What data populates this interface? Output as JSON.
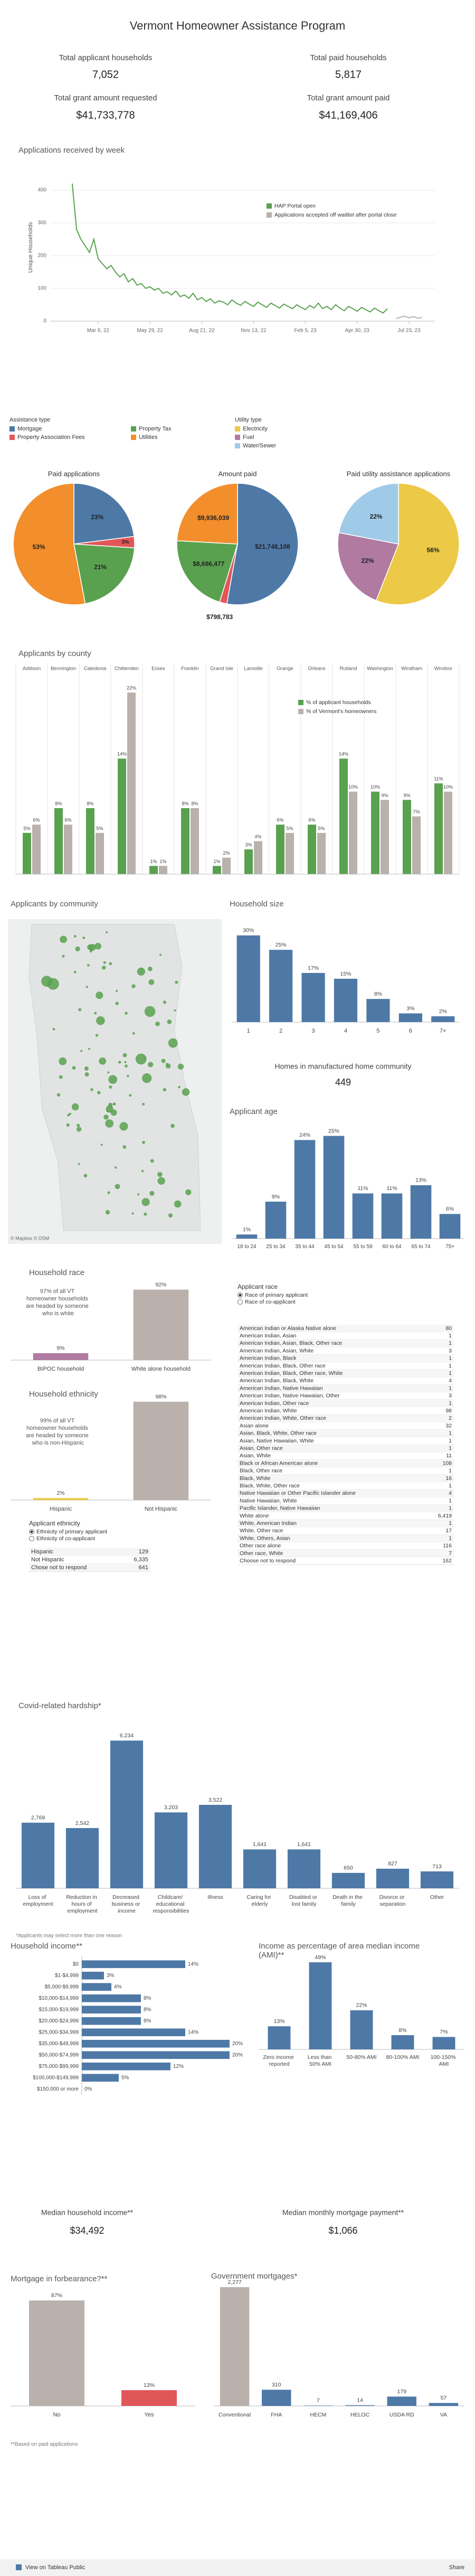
{
  "header": {
    "title": "Vermont Homeowner Assistance Program"
  },
  "kpis": [
    {
      "label": "Total applicant households",
      "value": "7,052"
    },
    {
      "label": "Total paid households",
      "value": "5,817"
    },
    {
      "label": "Total grant amount requested",
      "value": "$41,733,778"
    },
    {
      "label": "Total grant amount paid",
      "value": "$41,169,406"
    }
  ],
  "assistance_legend": {
    "title": "Assistance type",
    "items": [
      {
        "name": "Mortgage",
        "color": "#4e79a7"
      },
      {
        "name": "Property Tax",
        "color": "#59a14f"
      },
      {
        "name": "Property Association Fees",
        "color": "#e15759"
      },
      {
        "name": "Utilities",
        "color": "#f28e2b"
      }
    ]
  },
  "utility_legend": {
    "title": "Utility type",
    "items": [
      {
        "name": "Electricity",
        "color": "#edc948"
      },
      {
        "name": "Fuel",
        "color": "#b07aa1"
      },
      {
        "name": "Water/Sewer",
        "color": "#a0cbe8"
      }
    ]
  },
  "community_map": {
    "title": "Applicants by community",
    "attribution": "© Mapbox © OSM"
  },
  "manufactured": {
    "label": "Homes in manufactured home community",
    "value": "449"
  },
  "ethnicity_table": {
    "title": "Applicant ethnicity",
    "options": [
      "Ethnicity of primary applicant",
      "Ethnicity of co-applicant"
    ],
    "rows": [
      [
        "Hispanic",
        "129"
      ],
      [
        "Not Hispanic",
        "6,335"
      ],
      [
        "Chose not to respond",
        "641"
      ]
    ]
  },
  "race_table": {
    "title": "Applicant race",
    "options": [
      "Race of primary applicant",
      "Race of co-applicant"
    ],
    "rows": [
      [
        "American Indian or Alaska Native alone",
        "80"
      ],
      [
        "American Indian, Asian",
        "1"
      ],
      [
        "American Indian, Asian, Black, Other race",
        "1"
      ],
      [
        "American Indian, Asian, White",
        "3"
      ],
      [
        "American Indian, Black",
        "1"
      ],
      [
        "American Indian, Black, Other race",
        "1"
      ],
      [
        "American Indian, Black, Other race, White",
        "1"
      ],
      [
        "American Indian, Black, White",
        "4"
      ],
      [
        "American Indian, Native Hawaiian",
        "1"
      ],
      [
        "American Indian, Native Hawaiian, Other",
        "3"
      ],
      [
        "American Indian, Other race",
        "1"
      ],
      [
        "American Indian, White",
        "98"
      ],
      [
        "American Indian, White, Other race",
        "2"
      ],
      [
        "Asian alone",
        "32"
      ],
      [
        "Asian, Black, White, Other race",
        "1"
      ],
      [
        "Asian, Native Hawaiian, White",
        "1"
      ],
      [
        "Asian, Other race",
        "1"
      ],
      [
        "Asian, White",
        "11"
      ],
      [
        "Black or African American alone",
        "108"
      ],
      [
        "Black, Other race",
        "1"
      ],
      [
        "Black, White",
        "16"
      ],
      [
        "Black, White, Other race",
        "1"
      ],
      [
        "Native Hawaiian or Other Pacific Islander alone",
        "4"
      ],
      [
        "Native Hawaiian, White",
        "1"
      ],
      [
        "Pacific Islander, Native Hawaiian",
        "1"
      ],
      [
        "White alone",
        "6,419"
      ],
      [
        "White, American Indian",
        "1"
      ],
      [
        "White, Other race",
        "17"
      ],
      [
        "White, Others, Asian",
        "1"
      ],
      [
        "Other race alone",
        "116"
      ],
      [
        "Other race, White",
        "7"
      ],
      [
        "Choose not to respond",
        "162"
      ]
    ]
  },
  "medians": [
    {
      "label": "Median household income**",
      "value": "$34,492"
    },
    {
      "label": "Median monthly mortgage payment**",
      "value": "$1,066"
    }
  ],
  "footnotes": {
    "covid": "*Applicants may select more than one reason",
    "paid": "**Based on paid applications"
  },
  "footer": {
    "view": "View on Tableau Public",
    "share": "Share"
  },
  "chart_data": [
    {
      "type": "line",
      "title": "Applications received by week",
      "ylabel": "Unique Households",
      "x": [
        "2022-01-23",
        "2022-01-30",
        "2022-02-06",
        "2022-02-13",
        "2022-02-20",
        "2022-02-27",
        "2022-03-06",
        "2022-03-13",
        "2022-03-20",
        "2022-03-27",
        "2022-04-03",
        "2022-04-10",
        "2022-04-17",
        "2022-04-24",
        "2022-05-01",
        "2022-05-08",
        "2022-05-15",
        "2022-05-22",
        "2022-05-29",
        "2022-06-05",
        "2022-06-12",
        "2022-06-19",
        "2022-06-26",
        "2022-07-03",
        "2022-07-10",
        "2022-07-17",
        "2022-07-24",
        "2022-07-31",
        "2022-08-07",
        "2022-08-14",
        "2022-08-21",
        "2022-08-28",
        "2022-09-04",
        "2022-09-11",
        "2022-09-18",
        "2022-09-25",
        "2022-10-02",
        "2022-10-09",
        "2022-10-16",
        "2022-10-23",
        "2022-10-30",
        "2022-11-06",
        "2022-11-13",
        "2022-11-20",
        "2022-11-27",
        "2022-12-04",
        "2022-12-11",
        "2022-12-18",
        "2022-12-25",
        "2023-01-01",
        "2023-01-08",
        "2023-01-15",
        "2023-01-22",
        "2023-01-29",
        "2023-02-05",
        "2023-02-12",
        "2023-02-19",
        "2023-02-26",
        "2023-03-05",
        "2023-03-12",
        "2023-03-19",
        "2023-03-26",
        "2023-04-02",
        "2023-04-09",
        "2023-04-16",
        "2023-04-23",
        "2023-04-30",
        "2023-05-07",
        "2023-05-14",
        "2023-05-21",
        "2023-05-28",
        "2023-06-04",
        "2023-06-11",
        "2023-06-18",
        "2023-07-02",
        "2023-07-09",
        "2023-07-16",
        "2023-07-23",
        "2023-07-30",
        "2023-08-06",
        "2023-08-13"
      ],
      "series": [
        {
          "name": "HAP Portal open",
          "color": "#59a14f",
          "values": [
            420,
            280,
            250,
            230,
            210,
            250,
            190,
            175,
            160,
            170,
            150,
            135,
            145,
            120,
            130,
            110,
            115,
            100,
            105,
            95,
            100,
            85,
            90,
            80,
            92,
            75,
            80,
            70,
            85,
            65,
            72,
            60,
            68,
            55,
            62,
            58,
            50,
            65,
            55,
            48,
            60,
            52,
            45,
            58,
            50,
            42,
            55,
            48,
            40,
            52,
            45,
            38,
            50,
            42,
            35,
            48,
            40,
            55,
            38,
            45,
            35,
            50,
            40,
            32,
            45,
            38,
            30,
            42,
            35,
            28,
            40,
            32,
            25,
            38,
            null,
            null,
            null,
            null,
            null,
            null,
            null
          ]
        },
        {
          "name": "Applications accepted off waitlist after portal close",
          "color": "#bab0ac",
          "values": [
            null,
            null,
            null,
            null,
            null,
            null,
            null,
            null,
            null,
            null,
            null,
            null,
            null,
            null,
            null,
            null,
            null,
            null,
            null,
            null,
            null,
            null,
            null,
            null,
            null,
            null,
            null,
            null,
            null,
            null,
            null,
            null,
            null,
            null,
            null,
            null,
            null,
            null,
            null,
            null,
            null,
            null,
            null,
            null,
            null,
            null,
            null,
            null,
            null,
            null,
            null,
            null,
            null,
            null,
            null,
            null,
            null,
            null,
            null,
            null,
            null,
            null,
            null,
            null,
            null,
            null,
            null,
            null,
            null,
            null,
            null,
            null,
            null,
            null,
            8,
            12,
            15,
            10,
            14,
            9,
            11
          ]
        }
      ],
      "xlim": [
        "2021-12-19",
        "2023-09-03"
      ],
      "xticks": [
        {
          "value": "2022-03-06",
          "label": "Mar 6, 22"
        },
        {
          "value": "2022-05-29",
          "label": "May 29, 22"
        },
        {
          "value": "2022-08-21",
          "label": "Aug 21, 22"
        },
        {
          "value": "2022-11-13",
          "label": "Nov 13, 22"
        },
        {
          "value": "2023-02-05",
          "label": "Feb 5, 23"
        },
        {
          "value": "2023-04-30",
          "label": "Apr 30, 23"
        },
        {
          "value": "2023-07-23",
          "label": "Jul 23, 23"
        }
      ],
      "ylim": [
        0,
        450
      ],
      "yticks": [
        0,
        100,
        200,
        300,
        400
      ],
      "grid": true,
      "legend": "upper-right"
    },
    {
      "type": "pie",
      "title": "Paid applications",
      "values": [
        23,
        3,
        21,
        53
      ],
      "value_labels": [
        "23%",
        "3%",
        "21%",
        "53%"
      ],
      "colors": [
        "#4e79a7",
        "#e15759",
        "#59a14f",
        "#f28e2b"
      ]
    },
    {
      "type": "pie",
      "title": "Amount paid",
      "values": [
        21748108,
        798783,
        8686477,
        9936039
      ],
      "value_labels": [
        "$21,748,108",
        "$798,783",
        "$8,686,477",
        "$9,936,039"
      ],
      "colors": [
        "#4e79a7",
        "#e15759",
        "#59a14f",
        "#f28e2b"
      ]
    },
    {
      "type": "pie",
      "title": "Paid utility assistance applications",
      "values": [
        56,
        22,
        22
      ],
      "value_labels": [
        "56%",
        "22%",
        "22%"
      ],
      "colors": [
        "#edc948",
        "#b07aa1",
        "#a0cbe8"
      ]
    },
    {
      "type": "grouped_bar",
      "title": "Applicants by county",
      "categories": [
        "Addison",
        "Bennington",
        "Caledonia",
        "Chittenden",
        "Essex",
        "Franklin",
        "Grand Isle",
        "Lamoille",
        "Orange",
        "Orleans",
        "Rutland",
        "Washington",
        "Windham",
        "Windsor"
      ],
      "series": [
        {
          "name": "% of applicant households",
          "color": "#59a14f",
          "values": [
            5,
            8,
            8,
            14,
            1,
            8,
            1,
            3,
            6,
            6,
            14,
            10,
            9,
            11
          ],
          "value_labels": [
            "5%",
            "8%",
            "8%",
            "14%",
            "1%",
            "8%",
            "1%",
            "3%",
            "6%",
            "6%",
            "14%",
            "10%",
            "9%",
            "11%"
          ]
        },
        {
          "name": "% of Vermont's homeowners",
          "color": "#bab0ac",
          "values": [
            6,
            6,
            5,
            22,
            1,
            8,
            2,
            4,
            5,
            5,
            10,
            9,
            7,
            10
          ],
          "value_labels": [
            "6%",
            "6%",
            "5%",
            "22%",
            "1%",
            "8%",
            "2%",
            "4%",
            "5%",
            "5%",
            "10%",
            "9%",
            "7%",
            "10%"
          ]
        }
      ],
      "ylim": [
        0,
        24
      ],
      "legend": "upper-right"
    },
    {
      "type": "bar",
      "title": "Household size",
      "categories": [
        "1",
        "2",
        "3",
        "4",
        "5",
        "6",
        "7+"
      ],
      "values": [
        30,
        25,
        17,
        15,
        8,
        3,
        2
      ],
      "value_labels": [
        "30%",
        "25%",
        "17%",
        "15%",
        "8%",
        "3%",
        "2%"
      ],
      "color": "#4e79a7",
      "ylim": [
        0,
        32
      ]
    },
    {
      "type": "bar",
      "title": "Applicant age",
      "categories": [
        "18 to 24",
        "25 to 34",
        "35 to 44",
        "45 to 54",
        "55 to 59",
        "60 to 64",
        "65 to 74",
        "75+"
      ],
      "values": [
        1,
        9,
        24,
        25,
        11,
        11,
        13,
        6
      ],
      "value_labels": [
        "1%",
        "9%",
        "24%",
        "25%",
        "11%",
        "11%",
        "13%",
        "6%"
      ],
      "color": "#4e79a7",
      "ylim": [
        0,
        27
      ]
    },
    {
      "type": "bar",
      "title": "Household race",
      "note": "97% of all VT homeowner households are headed by someone who is white",
      "categories": [
        "BIPOC household",
        "White alone household"
      ],
      "values": [
        9,
        92
      ],
      "value_labels": [
        "9%",
        "92%"
      ],
      "colors": [
        "#b07aa1",
        "#bab0ac"
      ],
      "ylim": [
        0,
        100
      ]
    },
    {
      "type": "bar",
      "title": "Household ethnicity",
      "note": "99% of all VT homeowner households are headed by someone who is non-Hispanic",
      "categories": [
        "Hispanic",
        "Not Hispanic"
      ],
      "values": [
        2,
        98
      ],
      "value_labels": [
        "2%",
        "98%"
      ],
      "colors": [
        "#edc948",
        "#bab0ac"
      ],
      "ylim": [
        0,
        100
      ]
    },
    {
      "type": "bar",
      "title": "Covid-related hardship*",
      "categories": [
        "Loss of employment",
        "Reduction in hours of employment",
        "Decreased business or income",
        "Childcare/ educational responsibilities",
        "Illness",
        "Caring for elderly",
        "Disabled or lost family",
        "Death in the family",
        "Divorce or separation",
        "Other"
      ],
      "values": [
        2769,
        2542,
        6234,
        3203,
        3522,
        1641,
        1641,
        650,
        827,
        713
      ],
      "value_labels": [
        "2,769",
        "2,542",
        "6,234",
        "3,203",
        "3,522",
        "1,641",
        "1,641",
        "650",
        "827",
        "713"
      ],
      "color": "#4e79a7",
      "ylim": [
        0,
        7000
      ]
    },
    {
      "type": "hbar",
      "title": "Household income**",
      "categories": [
        "$0",
        "$1-$4,999",
        "$5,000-$9,999",
        "$10,000-$14,999",
        "$15,000-$19,999",
        "$20,000-$24,999",
        "$25,000-$34,999",
        "$35,000-$49,999",
        "$50,000-$74,999",
        "$75,000-$99,999",
        "$100,000-$149,999",
        "$150,000 or more"
      ],
      "values": [
        14,
        3,
        4,
        8,
        8,
        8,
        14,
        20,
        20,
        12,
        5,
        0
      ],
      "value_labels": [
        "14%",
        "3%",
        "4%",
        "8%",
        "8%",
        "8%",
        "14%",
        "20%",
        "20%",
        "12%",
        "5%",
        "0%"
      ],
      "color": "#4e79a7",
      "xlim": [
        0,
        22
      ]
    },
    {
      "type": "bar",
      "title": "Income as percentage of area median income (AMI)**",
      "categories": [
        "Zero income reported",
        "Less than 50% AMI",
        "50-80% AMI",
        "80-100% AMI",
        "100-150% AMI"
      ],
      "values": [
        13,
        49,
        22,
        8,
        7
      ],
      "value_labels": [
        "13%",
        "49%",
        "22%",
        "8%",
        "7%"
      ],
      "color": "#4e79a7",
      "ylim": [
        0,
        52
      ]
    },
    {
      "type": "bar",
      "title": "Mortgage in forbearance?**",
      "categories": [
        "No",
        "Yes"
      ],
      "values": [
        87,
        13
      ],
      "value_labels": [
        "87%",
        "13%"
      ],
      "colors": [
        "#bab0ac",
        "#e15759"
      ],
      "ylim": [
        0,
        95
      ]
    },
    {
      "type": "bar",
      "title": "Government mortgages*",
      "categories": [
        "Conventional",
        "FHA",
        "HECM",
        "HELOC",
        "USDA RD",
        "VA"
      ],
      "values": [
        2277,
        310,
        7,
        14,
        179,
        57
      ],
      "value_labels": [
        "2,277",
        "310",
        "7",
        "14",
        "179",
        "57"
      ],
      "colors": [
        "#bab0ac",
        "#4e79a7",
        "#4e79a7",
        "#4e79a7",
        "#4e79a7",
        "#4e79a7"
      ],
      "ylim": [
        0,
        2400
      ]
    }
  ]
}
